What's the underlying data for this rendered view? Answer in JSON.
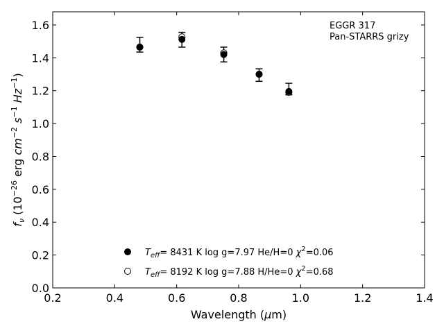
{
  "chart_data": {
    "type": "scatter",
    "title": "",
    "xlabel": "Wavelength (µm)",
    "ylabel": "f_ν (10^-26 erg cm^-2 s^-1 Hz^-1)",
    "xlim": [
      0.2,
      1.4
    ],
    "ylim": [
      0.0,
      1.68
    ],
    "xticks": [
      0.2,
      0.4,
      0.6,
      0.8,
      1.0,
      1.2,
      1.4
    ],
    "yticks": [
      0.0,
      0.2,
      0.4,
      0.6,
      0.8,
      1.0,
      1.2,
      1.4,
      1.6
    ],
    "xtick_labels": [
      "0.2",
      "0.4",
      "0.6",
      "0.8",
      "1.0",
      "1.2",
      "1.4"
    ],
    "ytick_labels": [
      "0.0",
      "0.2",
      "0.4",
      "0.6",
      "0.8",
      "1.0",
      "1.2",
      "1.4",
      "1.6"
    ],
    "grid": false,
    "legend_position": "bottom-center",
    "annotation": [
      "EGGR 317",
      "Pan-STARRS grizy"
    ],
    "observed": {
      "x": [
        0.481,
        0.617,
        0.752,
        0.866,
        0.962
      ],
      "y": [
        1.48,
        1.51,
        1.42,
        1.295,
        1.21
      ],
      "yerr": [
        0.045,
        0.045,
        0.045,
        0.038,
        0.035
      ],
      "color": "#000000"
    },
    "series": [
      {
        "name": "T_eff= 8431 K  log g=7.97  He/H=0  χ²=0.06",
        "marker": "filled-circle",
        "x": [
          0.481,
          0.617,
          0.752,
          0.866,
          0.962
        ],
        "y": [
          1.465,
          1.512,
          1.42,
          1.3,
          1.195
        ]
      },
      {
        "name": "T_eff= 8192 K  log g=7.88  H/He=0  χ²=0.68",
        "marker": "open-circle",
        "x": [
          0.481,
          0.617,
          0.752,
          0.866,
          0.962
        ],
        "y": [
          1.465,
          1.527,
          1.43,
          1.3,
          1.19
        ]
      }
    ]
  }
}
